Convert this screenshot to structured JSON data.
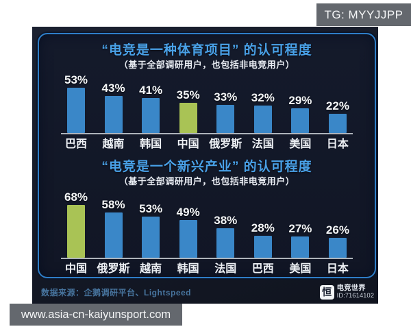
{
  "watermarks": {
    "top_right": "TG: MYYJJPP",
    "bottom_left": "www.asia-cn-kaiyunsport.com"
  },
  "colors": {
    "bar_blue": "#3a87c8",
    "bar_green": "#a9c355",
    "title_blue": "#49a1e8",
    "panel_border": "#2e7ec8",
    "watermark_bg": "#64686e",
    "photo_background": "#151a28"
  },
  "footer": {
    "source": "数据来源：企鹅调研平台、Lightspeed",
    "logo_glyph": "恒",
    "logo_name": "电竞世界",
    "logo_id": "ID:71614102"
  },
  "chart_data": [
    {
      "type": "bar",
      "title": "“电竞是一种体育项目” 的认可程度",
      "subtitle": "（基于全部调研用户，也包括非电竞用户）",
      "categories": [
        "巴西",
        "越南",
        "韩国",
        "中国",
        "俄罗斯",
        "法国",
        "美国",
        "日本"
      ],
      "values": [
        53,
        43,
        41,
        35,
        33,
        32,
        29,
        22
      ],
      "unit": "%",
      "highlight_index": 3,
      "highlight_category": "中国",
      "ylim": [
        0,
        60
      ],
      "grid": false,
      "legend": "none",
      "value_labels": "above bars"
    },
    {
      "type": "bar",
      "title": "“电竞是一个新兴产业” 的认可程度",
      "subtitle": "（基于全部调研用户，也包括非电竞用户）",
      "categories": [
        "中国",
        "俄罗斯",
        "越南",
        "韩国",
        "法国",
        "巴西",
        "美国",
        "日本"
      ],
      "values": [
        68,
        58,
        53,
        49,
        38,
        28,
        27,
        26
      ],
      "unit": "%",
      "highlight_index": 0,
      "highlight_category": "中国",
      "ylim": [
        0,
        75
      ],
      "grid": false,
      "legend": "none",
      "value_labels": "above bars"
    }
  ]
}
